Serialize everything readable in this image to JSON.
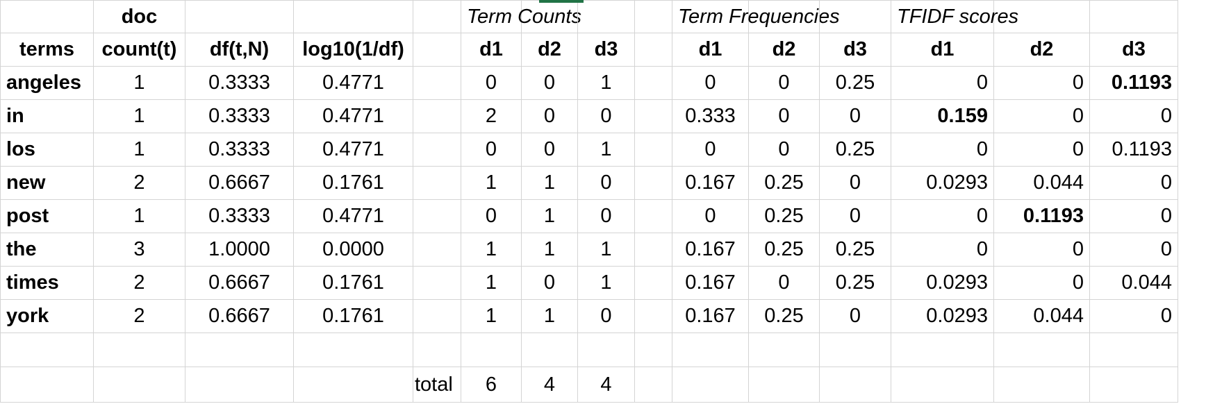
{
  "header": {
    "row1": [
      "",
      "doc",
      "",
      "",
      "",
      "Term Counts",
      "",
      "",
      "",
      "Term Frequencies",
      "",
      "",
      "TFIDF scores",
      "",
      ""
    ],
    "row2": [
      "terms",
      "count(t)",
      "df(t,N)",
      "log10(1/df)",
      "",
      "d1",
      "d2",
      "d3",
      "",
      "d1",
      "d2",
      "d3",
      "d1",
      "d2",
      "d3"
    ]
  },
  "rows": [
    [
      "angeles",
      "1",
      "0.3333",
      "0.4771",
      "",
      "0",
      "0",
      "1",
      "",
      "0",
      "0",
      "0.25",
      "0",
      "0",
      "0.1193"
    ],
    [
      "in",
      "1",
      "0.3333",
      "0.4771",
      "",
      "2",
      "0",
      "0",
      "",
      "0.333",
      "0",
      "0",
      "0.159",
      "0",
      "0"
    ],
    [
      "los",
      "1",
      "0.3333",
      "0.4771",
      "",
      "0",
      "0",
      "1",
      "",
      "0",
      "0",
      "0.25",
      "0",
      "0",
      "0.1193"
    ],
    [
      "new",
      "2",
      "0.6667",
      "0.1761",
      "",
      "1",
      "1",
      "0",
      "",
      "0.167",
      "0.25",
      "0",
      "0.0293",
      "0.044",
      "0"
    ],
    [
      "post",
      "1",
      "0.3333",
      "0.4771",
      "",
      "0",
      "1",
      "0",
      "",
      "0",
      "0.25",
      "0",
      "0",
      "0.1193",
      "0"
    ],
    [
      "the",
      "3",
      "1.0000",
      "0.0000",
      "",
      "1",
      "1",
      "1",
      "",
      "0.167",
      "0.25",
      "0.25",
      "0",
      "0",
      "0"
    ],
    [
      "times",
      "2",
      "0.6667",
      "0.1761",
      "",
      "1",
      "0",
      "1",
      "",
      "0.167",
      "0",
      "0.25",
      "0.0293",
      "0",
      "0.044"
    ],
    [
      "york",
      "2",
      "0.6667",
      "0.1761",
      "",
      "1",
      "1",
      "0",
      "",
      "0.167",
      "0.25",
      "0",
      "0.0293",
      "0.044",
      "0"
    ]
  ],
  "blank_row": [
    "",
    "",
    "",
    "",
    "",
    "",
    "",
    "",
    "",
    "",
    "",
    "",
    "",
    "",
    ""
  ],
  "total_row": [
    "",
    "",
    "",
    "",
    "total",
    "6",
    "4",
    "4",
    "",
    "",
    "",
    "",
    "",
    "",
    ""
  ],
  "bold_cells": [
    [
      0,
      14
    ],
    [
      1,
      12
    ],
    [
      4,
      13
    ]
  ]
}
